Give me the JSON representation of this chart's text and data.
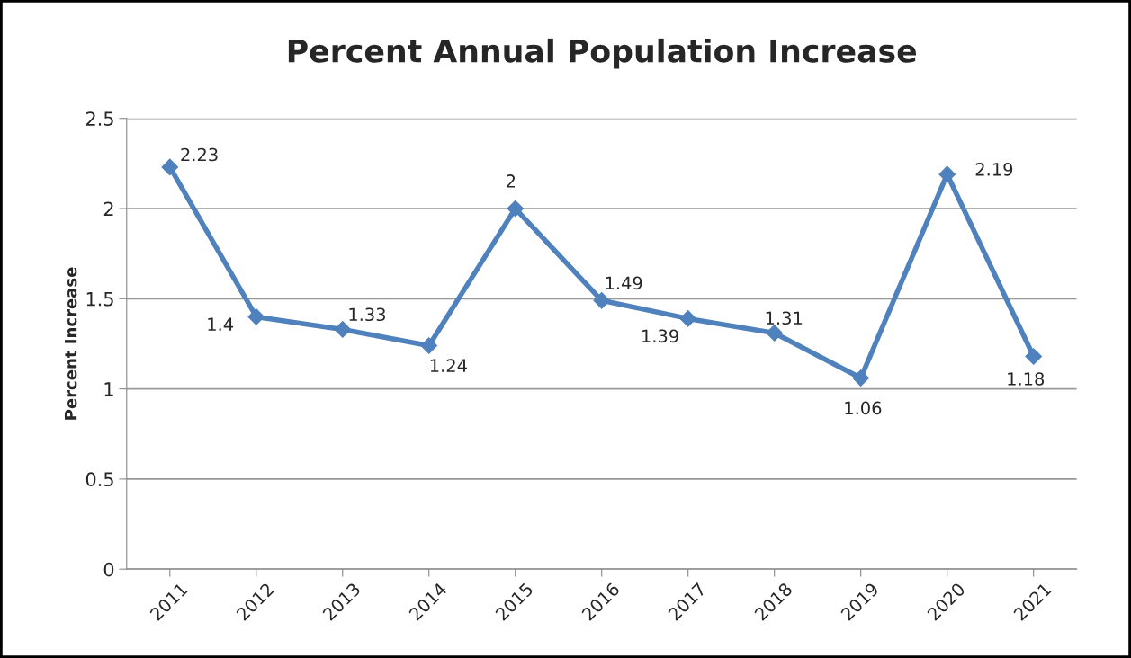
{
  "chart_data": {
    "type": "line",
    "title": "Percent Annual Population Increase",
    "ylabel": "Percent Increase",
    "categories": [
      "2011",
      "2012",
      "2013",
      "2014",
      "2015",
      "2016",
      "2017",
      "2018",
      "2019",
      "2020",
      "2021"
    ],
    "series": [
      {
        "color": "#4f81bd",
        "values": [
          2.23,
          1.4,
          1.33,
          1.24,
          2,
          1.49,
          1.39,
          1.31,
          1.06,
          2.19,
          1.18
        ]
      }
    ],
    "ylim": [
      0,
      2.5
    ],
    "yticks": [
      0,
      0.5,
      1,
      1.5,
      2,
      2.5
    ],
    "grid": "y",
    "legend": false,
    "marker": "diamond",
    "line_style": "solid",
    "data_labels": true
  }
}
